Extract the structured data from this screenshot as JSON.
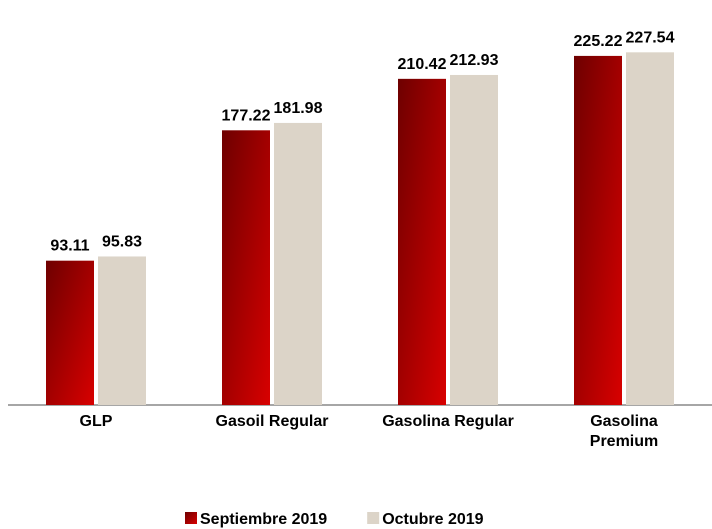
{
  "chart_data": {
    "type": "bar",
    "categories": [
      "GLP",
      "Gasoil Regular",
      "Gasolina Regular",
      "Gasolina\nPremium"
    ],
    "series": [
      {
        "name": "Septiembre 2019",
        "color": "#c00000",
        "values": [
          93.11,
          177.22,
          210.42,
          225.22
        ]
      },
      {
        "name": "Octubre 2019",
        "color": "#dcd4c8",
        "values": [
          95.83,
          181.98,
          212.93,
          227.54
        ]
      }
    ],
    "ylim": [
      0,
      250
    ]
  }
}
